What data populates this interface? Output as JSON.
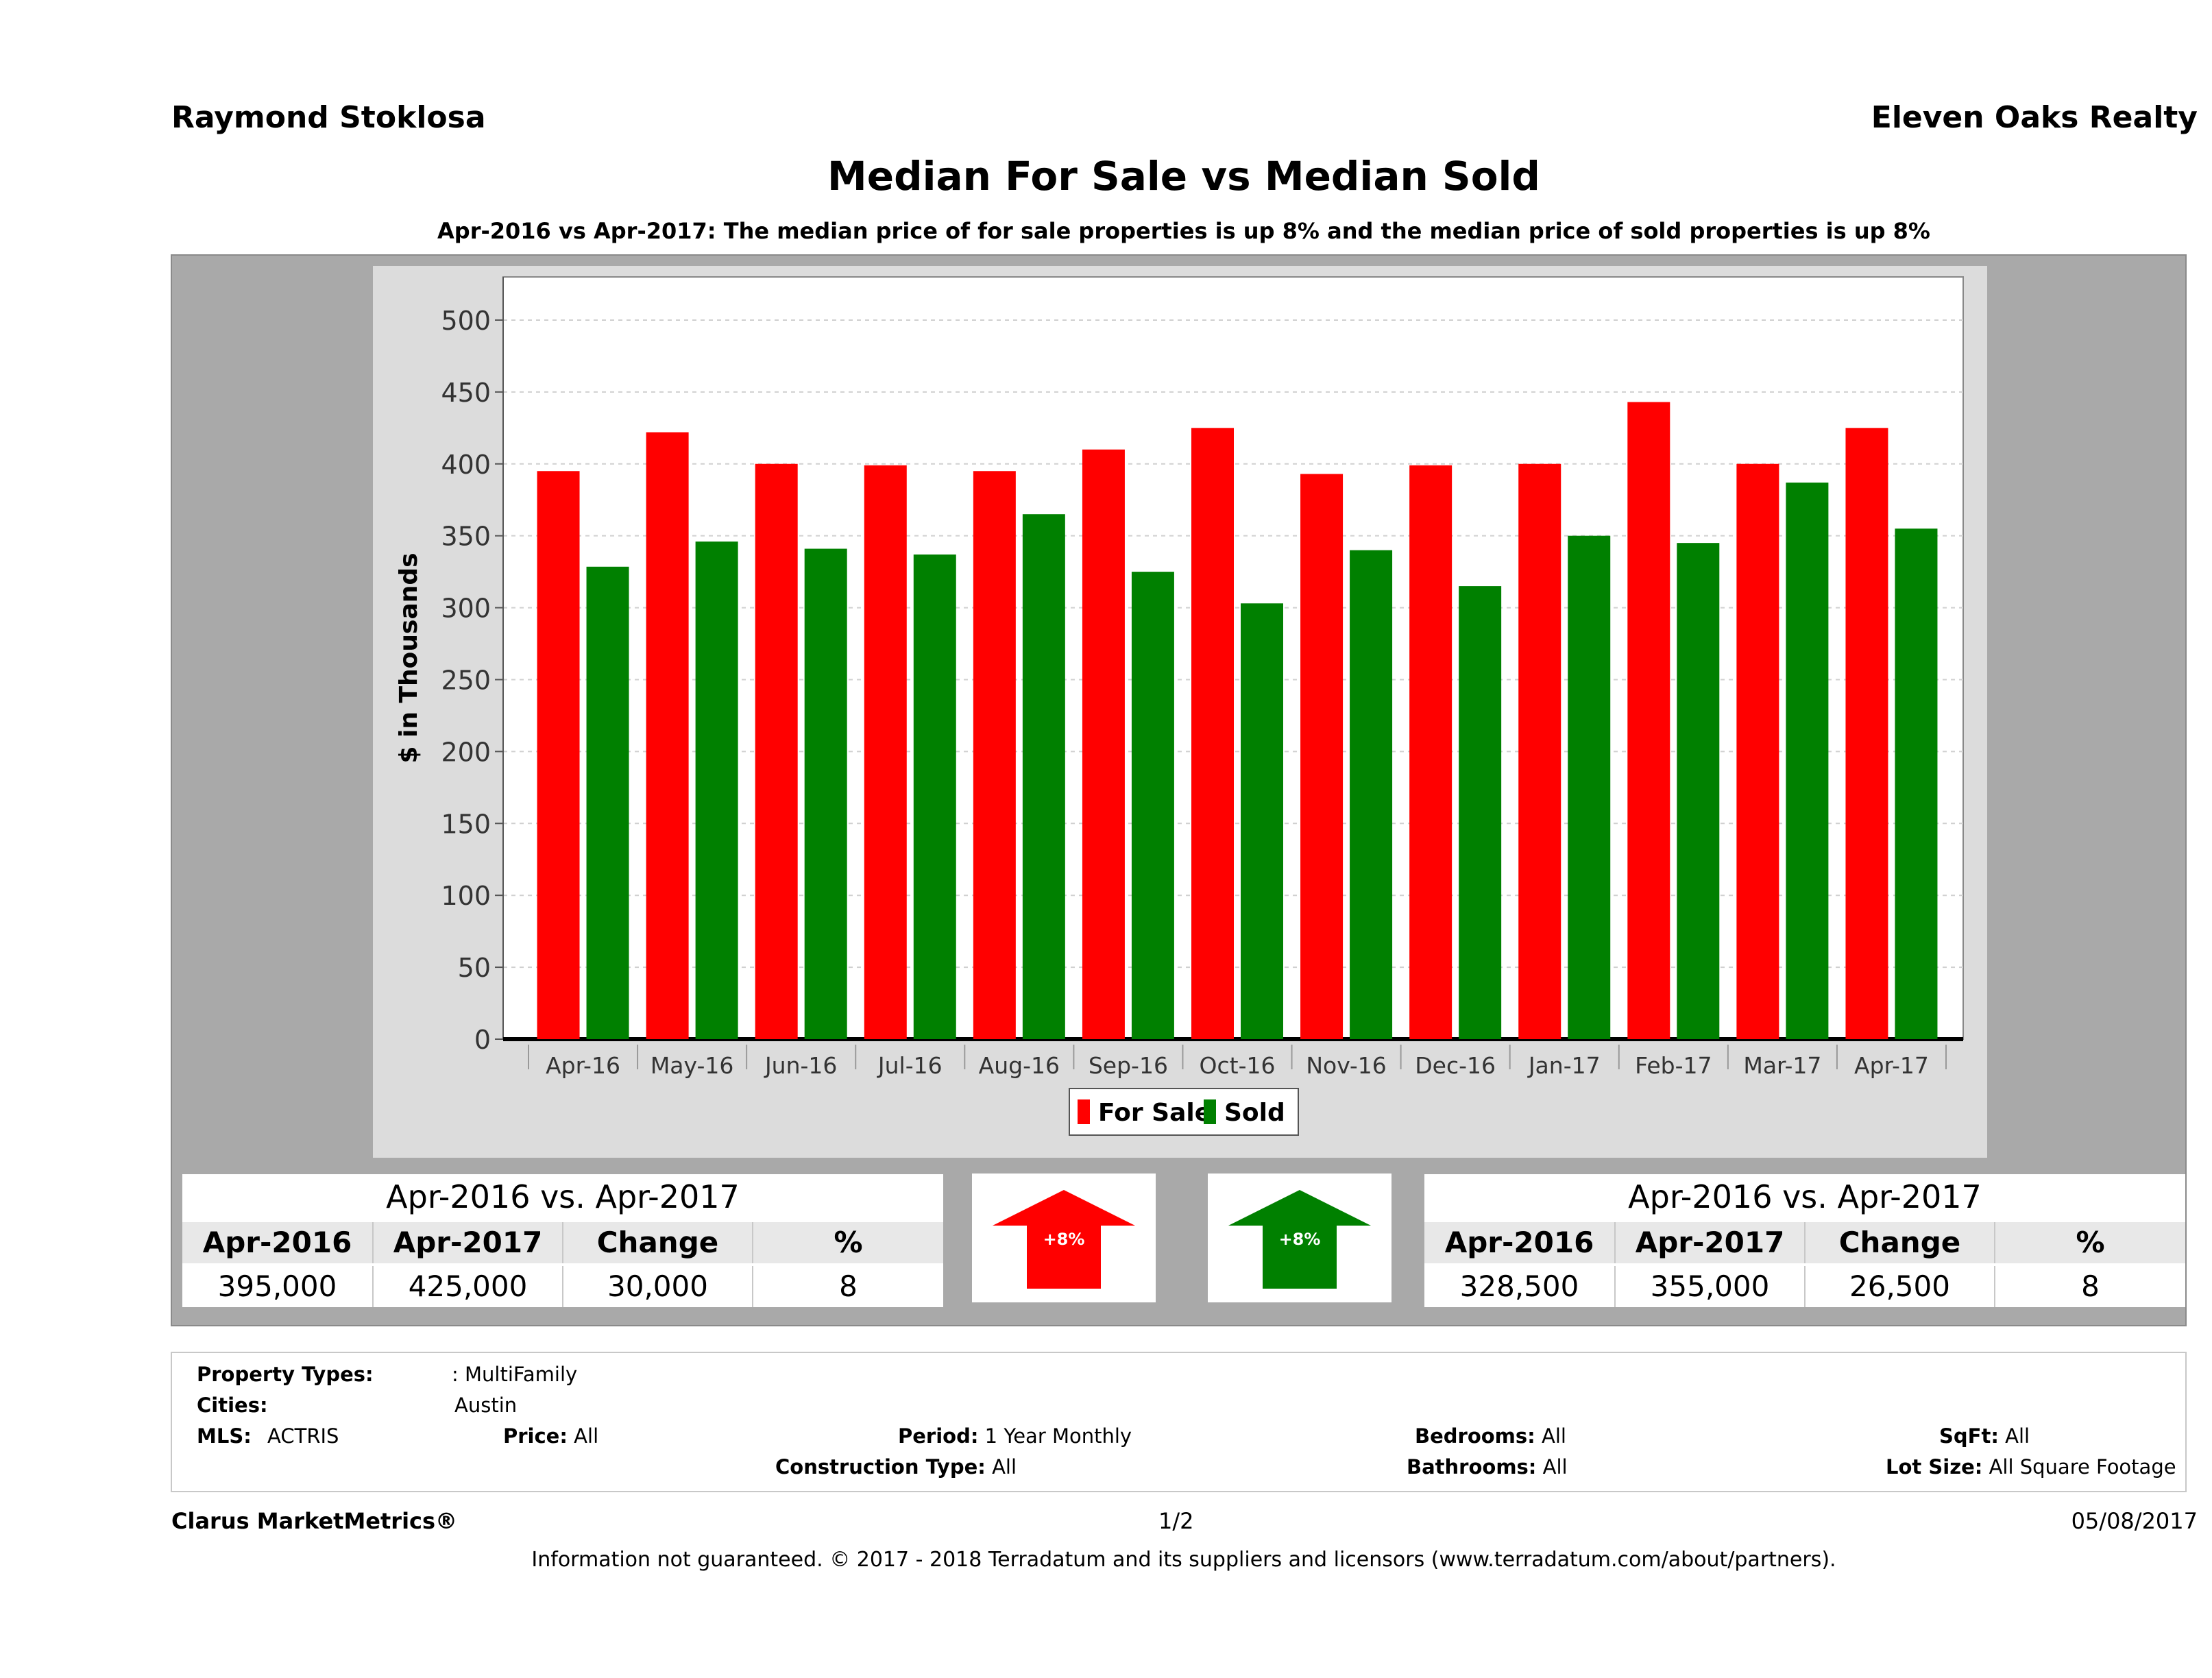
{
  "header": {
    "agent": "Raymond Stoklosa",
    "brokerage": "Eleven Oaks Realty",
    "title": "Median For Sale vs Median Sold",
    "subtitle": "Apr-2016 vs Apr-2017: The median price of for sale properties is up 8% and the median price of sold properties is up 8%"
  },
  "colors": {
    "for_sale": "#ff0000",
    "sold": "#008000",
    "panel": "#a9a9a9",
    "plot_bg": "#ffffff"
  },
  "chart_data": {
    "type": "bar",
    "categories": [
      "Apr-16",
      "May-16",
      "Jun-16",
      "Jul-16",
      "Aug-16",
      "Sep-16",
      "Oct-16",
      "Nov-16",
      "Dec-16",
      "Jan-17",
      "Feb-17",
      "Mar-17",
      "Apr-17"
    ],
    "series": [
      {
        "name": "For Sale",
        "values": [
          395,
          422,
          400,
          399,
          395,
          410,
          425,
          393,
          399,
          400,
          443,
          400,
          425
        ]
      },
      {
        "name": "Sold",
        "values": [
          328.5,
          346,
          341,
          337,
          365,
          325,
          303,
          340,
          315,
          350,
          345,
          387,
          355
        ]
      }
    ],
    "title": "",
    "xlabel": "",
    "ylabel": "$ in Thousands",
    "ylim": [
      0,
      530
    ],
    "yticks": [
      0,
      50,
      100,
      150,
      200,
      250,
      300,
      350,
      400,
      450,
      500
    ],
    "grid": true,
    "legend": "bottom-center"
  },
  "for_sale_table": {
    "header": "Apr-2016 vs. Apr-2017",
    "columns": [
      "Apr-2016",
      "Apr-2017",
      "Change",
      "%"
    ],
    "values": [
      "395,000",
      "425,000",
      "30,000",
      "8"
    ]
  },
  "sold_table": {
    "header": "Apr-2016 vs. Apr-2017",
    "columns": [
      "Apr-2016",
      "Apr-2017",
      "Change",
      "%"
    ],
    "values": [
      "328,500",
      "355,000",
      "26,500",
      "8"
    ]
  },
  "for_sale_arrow": {
    "label": "+8%",
    "direction": "up",
    "color": "#ff0000"
  },
  "sold_arrow": {
    "label": "+8%",
    "direction": "up",
    "color": "#008000"
  },
  "criteria": {
    "property_types_label": "Property Types:",
    "property_types_value": ": MultiFamily",
    "cities_label": "Cities:",
    "cities_value": "Austin",
    "mls_label": "MLS:",
    "mls_value": "ACTRIS",
    "price_label": "Price:",
    "price_value": "All",
    "period_label": "Period:",
    "period_value": "1 Year Monthly",
    "bedrooms_label": "Bedrooms:",
    "bedrooms_value": "All",
    "sqft_label": "SqFt:",
    "sqft_value": "All",
    "construction_label": "Construction Type:",
    "construction_value": "All",
    "bathrooms_label": "Bathrooms:",
    "bathrooms_value": "All",
    "lot_size_label": "Lot Size:",
    "lot_size_value": "All Square Footage"
  },
  "footer": {
    "brand": "Clarus MarketMetrics®",
    "page": "1/2",
    "date": "05/08/2017",
    "disclaimer": "Information not guaranteed. © 2017 - 2018 Terradatum and its suppliers and licensors (www.terradatum.com/about/partners)."
  }
}
